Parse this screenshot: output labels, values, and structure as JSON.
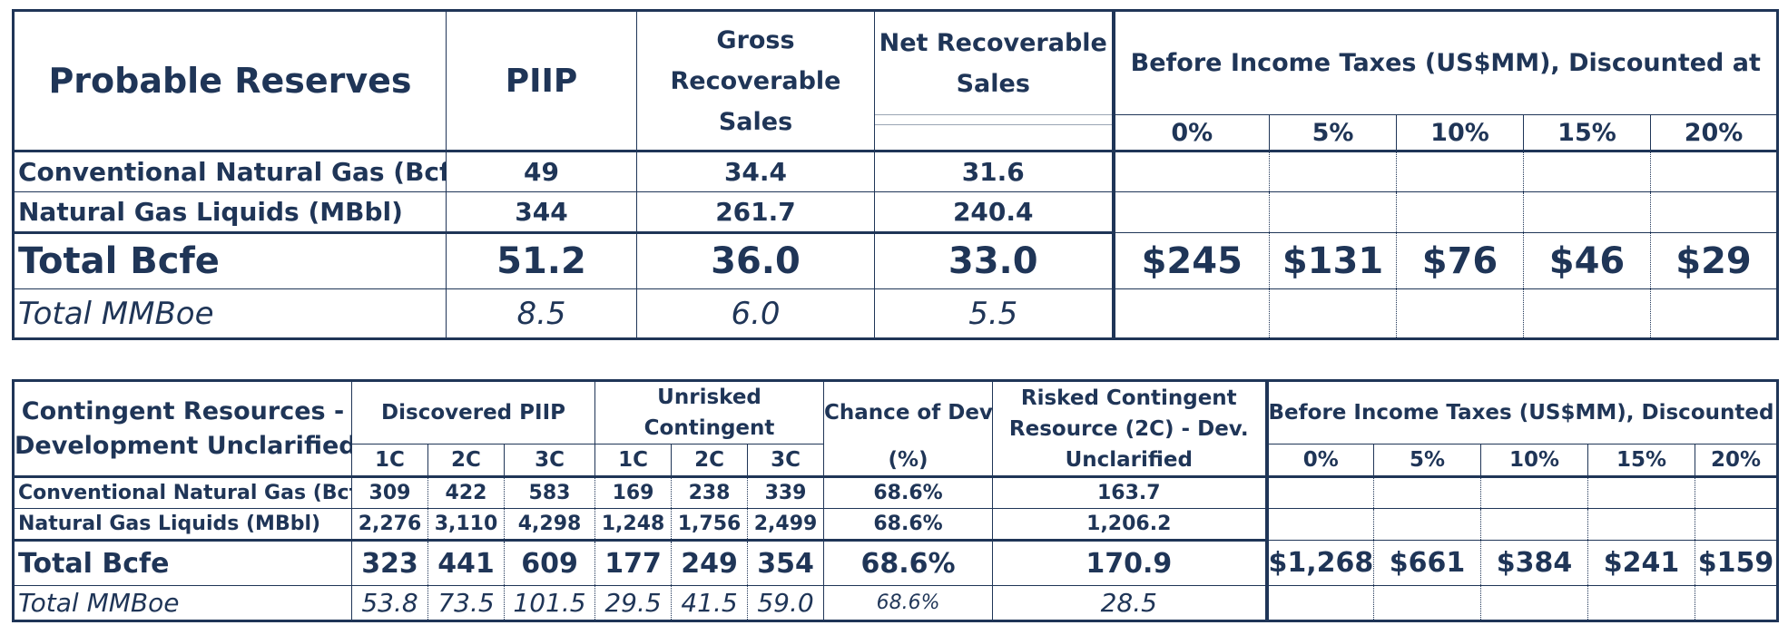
{
  "probable": {
    "title": "Probable Reserves",
    "col_piip": "PIIP",
    "col_gross": [
      "Gross",
      "Recoverable",
      "Sales"
    ],
    "col_net": [
      "Net Recoverable",
      "Sales"
    ],
    "col_bit": "Before Income Taxes (US$MM), Discounted at",
    "discounts": [
      "0%",
      "5%",
      "10%",
      "15%",
      "20%"
    ],
    "rows": [
      {
        "label": "Conventional Natural Gas (Bcf)",
        "piip": "49",
        "gross": "34.4",
        "net": "31.6"
      },
      {
        "label": "Natural Gas Liquids (MBbl)",
        "piip": "344",
        "gross": "261.7",
        "net": "240.4"
      }
    ],
    "total_bcfe": {
      "label": "Total Bcfe",
      "piip": "51.2",
      "gross": "36.0",
      "net": "33.0",
      "values": [
        "$245",
        "$131",
        "$76",
        "$46",
        "$29"
      ]
    },
    "total_mmboe": {
      "label": "Total MMBoe",
      "piip": "8.5",
      "gross": "6.0",
      "net": "5.5"
    }
  },
  "contingent": {
    "title": [
      "Contingent Resources -",
      "Development Unclarified"
    ],
    "col_piip": "Discovered PIIP",
    "col_unrisked": [
      "Unrisked",
      "Contingent"
    ],
    "col_chance": "Chance of Dev.",
    "col_chance_unit": "(%)",
    "col_risked": [
      "Risked Contingent",
      "Resource (2C) - Dev.",
      "Unclarified"
    ],
    "col_bit": "Before Income Taxes (US$MM), Discounted at",
    "cases": [
      "1C",
      "2C",
      "3C"
    ],
    "discounts": [
      "0%",
      "5%",
      "10%",
      "15%",
      "20%"
    ],
    "rows": [
      {
        "label": "Conventional Natural Gas (Bcf)",
        "piip": [
          "309",
          "422",
          "583"
        ],
        "unrisked": [
          "169",
          "238",
          "339"
        ],
        "chance": "68.6%",
        "risked": "163.7"
      },
      {
        "label": "Natural Gas Liquids (MBbl)",
        "piip": [
          "2,276",
          "3,110",
          "4,298"
        ],
        "unrisked": [
          "1,248",
          "1,756",
          "2,499"
        ],
        "chance": "68.6%",
        "risked": "1,206.2"
      }
    ],
    "total_bcfe": {
      "label": "Total Bcfe",
      "piip": [
        "323",
        "441",
        "609"
      ],
      "unrisked": [
        "177",
        "249",
        "354"
      ],
      "chance": "68.6%",
      "risked": "170.9",
      "values": [
        "$1,268",
        "$661",
        "$384",
        "$241",
        "$159"
      ]
    },
    "total_mmboe": {
      "label": "Total MMBoe",
      "piip": [
        "53.8",
        "73.5",
        "101.5"
      ],
      "unrisked": [
        "29.5",
        "41.5",
        "59.0"
      ],
      "chance": "68.6%",
      "risked": "28.5"
    }
  }
}
